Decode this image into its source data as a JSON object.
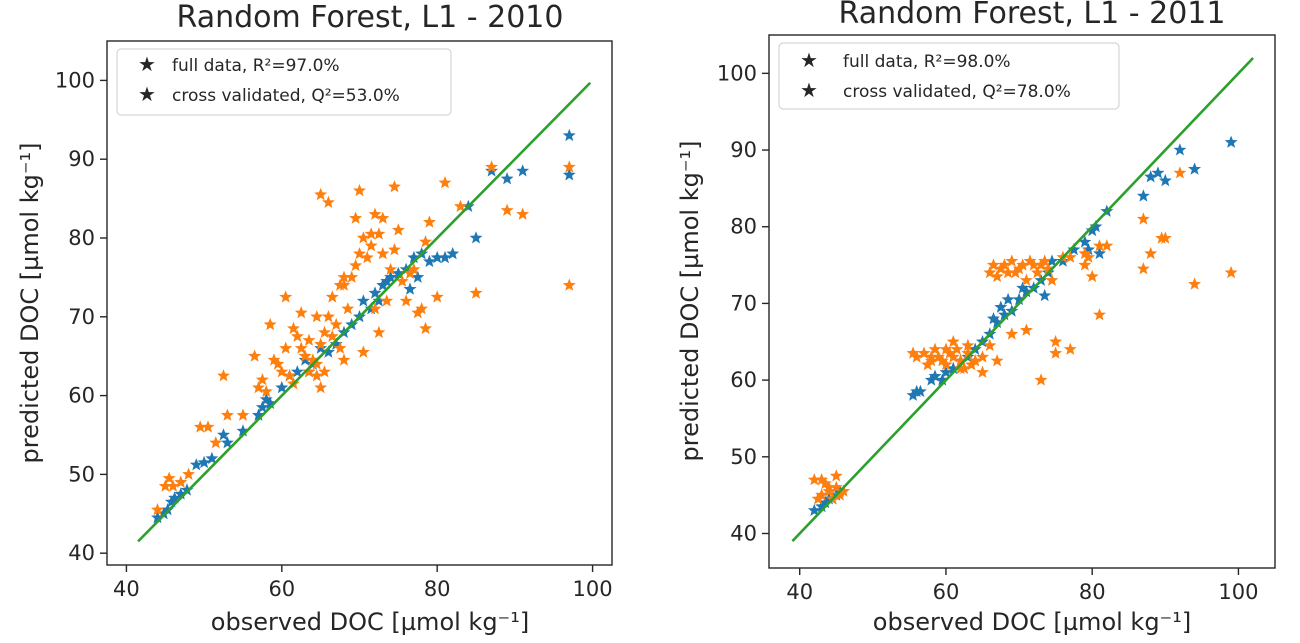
{
  "colors": {
    "full": "#1f77b4",
    "cv": "#ff7f0e",
    "line": "#2ca02c",
    "axes": "#262626"
  },
  "chart_data": [
    {
      "type": "scatter",
      "title": "Random Forest, L1 - 2010",
      "xlabel": "observed DOC [µmol kg⁻¹]",
      "ylabel": "predicted DOC [µmol kg⁻¹]",
      "xlim": [
        37.5,
        102.5
      ],
      "ylim": [
        38.5,
        105
      ],
      "xticks": [
        40,
        60,
        80,
        100
      ],
      "yticks": [
        40,
        50,
        60,
        70,
        80,
        90,
        100
      ],
      "xtick_labels": [
        "40",
        "60",
        "80",
        "100"
      ],
      "ytick_labels": [
        "40",
        "50",
        "60",
        "70",
        "80",
        "90",
        "100"
      ],
      "grid": false,
      "legend": "top-left",
      "identity_line": [
        41.5,
        99.7
      ],
      "series": [
        {
          "name": "full data",
          "legend_label": "full data, R²=97.0%",
          "color_key": "full",
          "x": [
            44.0,
            44.8,
            45.3,
            45.8,
            46.2,
            47.0,
            47.8,
            49.0,
            50.0,
            51.0,
            52.5,
            53.0,
            55.0,
            57.0,
            57.5,
            58.0,
            58.5,
            60.0,
            61.0,
            62.0,
            63.0,
            63.5,
            64.0,
            65.0,
            66.0,
            67.0,
            68.0,
            69.0,
            70.0,
            70.5,
            71.5,
            72.0,
            72.5,
            73.0,
            73.5,
            74.0,
            75.0,
            76.0,
            76.5,
            77.0,
            77.5,
            78.0,
            79.0,
            80.0,
            81.0,
            82.0,
            84.0,
            85.0,
            87.0,
            89.0,
            91.0,
            97.0,
            97.0
          ],
          "y": [
            44.5,
            45.0,
            45.5,
            46.5,
            47.0,
            47.5,
            48.0,
            51.2,
            51.5,
            52.0,
            55.0,
            54.0,
            55.5,
            57.5,
            58.5,
            59.5,
            59.0,
            61.0,
            62.5,
            63.0,
            64.5,
            63.0,
            64.0,
            66.0,
            65.5,
            66.5,
            68.0,
            69.0,
            70.0,
            72.0,
            71.0,
            73.0,
            72.0,
            74.0,
            74.5,
            75.0,
            75.5,
            76.0,
            73.5,
            77.5,
            75.0,
            78.0,
            77.0,
            77.5,
            77.5,
            78.0,
            84.0,
            80.0,
            88.5,
            87.5,
            88.5,
            93.0,
            88.0
          ]
        },
        {
          "name": "cross validated",
          "legend_label": "cross validated, Q²=53.0%",
          "color_key": "cv",
          "x": [
            44.0,
            45.0,
            45.5,
            46.0,
            47.0,
            48.0,
            49.5,
            50.5,
            51.5,
            52.5,
            53.0,
            55.0,
            56.5,
            57.0,
            57.5,
            58.0,
            59.0,
            60.0,
            60.5,
            61.0,
            61.5,
            62.0,
            62.5,
            63.0,
            63.5,
            64.0,
            64.5,
            65.0,
            65.0,
            65.5,
            66.0,
            66.5,
            67.0,
            67.5,
            68.0,
            68.5,
            69.0,
            69.5,
            70.0,
            70.5,
            71.0,
            71.5,
            72.0,
            72.5,
            73.0,
            73.5,
            74.0,
            74.5,
            75.0,
            75.5,
            76.0,
            77.0,
            77.5,
            78.0,
            78.5,
            79.0,
            80.0,
            81.0,
            83.0,
            85.0,
            87.0,
            89.0,
            91.0,
            97.0,
            97.0,
            65.0,
            66.0,
            68.0,
            70.0,
            72.0,
            73.0,
            64.5,
            66.5,
            67.5,
            69.5,
            71.5,
            74.5,
            76.5,
            78.5,
            62.5,
            61.5,
            60.5,
            59.5,
            58.5,
            68.0,
            70.5,
            72.5,
            63.5,
            64.5,
            65.5
          ],
          "y": [
            45.5,
            48.5,
            49.5,
            48.5,
            49.0,
            50.0,
            56.0,
            56.0,
            54.0,
            62.5,
            57.5,
            57.5,
            65.0,
            61.0,
            62.0,
            60.5,
            64.5,
            63.0,
            66.0,
            62.5,
            61.5,
            67.5,
            66.0,
            65.0,
            63.0,
            64.5,
            62.5,
            66.5,
            61.0,
            68.0,
            70.0,
            67.5,
            69.0,
            66.0,
            74.0,
            71.0,
            75.0,
            76.5,
            78.0,
            80.0,
            77.5,
            79.0,
            71.0,
            80.5,
            82.5,
            72.0,
            76.0,
            78.5,
            81.0,
            74.5,
            72.0,
            76.0,
            70.5,
            71.0,
            68.5,
            82.0,
            72.5,
            87.0,
            84.0,
            73.0,
            89.0,
            83.5,
            83.0,
            89.0,
            74.0,
            85.5,
            84.5,
            75.0,
            86.0,
            83.0,
            78.0,
            70.0,
            72.5,
            74.0,
            82.5,
            80.5,
            86.5,
            75.5,
            79.5,
            70.5,
            68.5,
            72.5,
            64.0,
            69.0,
            64.5,
            65.5,
            68.0,
            67.0,
            64.0,
            63.0
          ]
        }
      ]
    },
    {
      "type": "scatter",
      "title": "Random Forest, L1 - 2011",
      "xlabel": "observed DOC [µmol kg⁻¹]",
      "ylabel": "predicted DOC [µmol kg⁻¹]",
      "xlim": [
        35.8,
        105.0
      ],
      "ylim": [
        35.5,
        105.0
      ],
      "xticks": [
        40,
        60,
        80,
        100
      ],
      "yticks": [
        40,
        50,
        60,
        70,
        80,
        90,
        100
      ],
      "xtick_labels": [
        "40",
        "60",
        "80",
        "100"
      ],
      "ytick_labels": [
        "40",
        "50",
        "60",
        "70",
        "80",
        "90",
        "100"
      ],
      "grid": false,
      "legend": "top-left",
      "identity_line": [
        39.0,
        102.0
      ],
      "series": [
        {
          "name": "full data",
          "legend_label": "full data, R²=98.0%",
          "color_key": "full",
          "x": [
            42.0,
            43.0,
            43.5,
            44.0,
            44.5,
            45.0,
            45.5,
            55.5,
            56.0,
            56.5,
            58.0,
            58.5,
            59.5,
            60.0,
            61.0,
            62.0,
            63.0,
            64.0,
            65.0,
            66.0,
            66.5,
            67.0,
            67.5,
            68.0,
            68.5,
            69.0,
            70.0,
            70.5,
            71.0,
            72.0,
            73.0,
            73.5,
            74.0,
            74.5,
            76.0,
            77.5,
            79.0,
            79.5,
            80.0,
            80.5,
            81.0,
            82.0,
            87.0,
            88.0,
            89.0,
            90.0,
            92.0,
            94.0,
            99.0
          ],
          "y": [
            43.0,
            43.5,
            44.0,
            44.5,
            44.5,
            45.0,
            45.5,
            58.0,
            58.5,
            58.5,
            60.0,
            60.5,
            60.0,
            61.0,
            61.5,
            62.5,
            63.0,
            64.0,
            65.0,
            66.0,
            68.0,
            67.5,
            69.5,
            68.5,
            70.5,
            69.0,
            70.5,
            72.0,
            71.5,
            72.0,
            73.0,
            71.0,
            74.0,
            75.5,
            75.5,
            77.0,
            78.0,
            77.0,
            79.5,
            80.0,
            76.5,
            82.0,
            84.0,
            86.5,
            87.0,
            86.0,
            90.0,
            87.5,
            91.0
          ]
        },
        {
          "name": "cross validated",
          "legend_label": "cross validated, Q²=78.0%",
          "color_key": "cv",
          "x": [
            42.0,
            42.5,
            43.0,
            43.5,
            44.0,
            44.5,
            45.0,
            45.5,
            46.0,
            43.0,
            44.0,
            45.0,
            55.5,
            56.0,
            57.0,
            57.5,
            58.0,
            58.5,
            59.0,
            59.5,
            60.0,
            60.5,
            61.0,
            61.5,
            62.0,
            62.5,
            63.0,
            63.5,
            64.0,
            65.0,
            66.0,
            66.5,
            67.0,
            67.5,
            68.0,
            68.5,
            69.0,
            69.5,
            70.0,
            70.5,
            71.0,
            71.5,
            72.0,
            72.5,
            73.0,
            73.5,
            74.0,
            74.5,
            75.0,
            76.0,
            77.0,
            79.0,
            79.5,
            80.0,
            81.0,
            82.0,
            87.0,
            87.0,
            88.0,
            89.5,
            90.0,
            92.0,
            94.0,
            99.0,
            58.0,
            60.0,
            62.0,
            64.0,
            66.0,
            61.0,
            63.0,
            65.0,
            67.0,
            69.0,
            71.0,
            73.0,
            75.0,
            77.0,
            79.0,
            81.0
          ],
          "y": [
            47.0,
            44.5,
            45.0,
            46.5,
            45.5,
            44.5,
            46.0,
            45.0,
            45.5,
            47.0,
            46.0,
            47.5,
            63.5,
            63.0,
            63.5,
            62.0,
            62.5,
            64.0,
            63.0,
            62.5,
            64.0,
            63.5,
            63.0,
            64.0,
            62.5,
            61.5,
            63.5,
            62.0,
            62.5,
            63.0,
            74.0,
            75.0,
            73.5,
            74.5,
            75.0,
            74.0,
            75.5,
            74.0,
            74.5,
            75.0,
            73.0,
            75.5,
            75.0,
            74.0,
            75.0,
            75.5,
            74.5,
            73.0,
            65.0,
            76.0,
            76.0,
            75.0,
            76.0,
            73.5,
            68.5,
            77.5,
            81.0,
            74.5,
            76.5,
            78.5,
            78.5,
            87.0,
            72.5,
            74.0,
            63.0,
            62.0,
            61.5,
            62.5,
            64.5,
            65.0,
            64.5,
            61.0,
            62.5,
            66.0,
            66.5,
            60.0,
            63.5,
            64.0,
            76.5,
            77.5
          ]
        }
      ]
    }
  ]
}
